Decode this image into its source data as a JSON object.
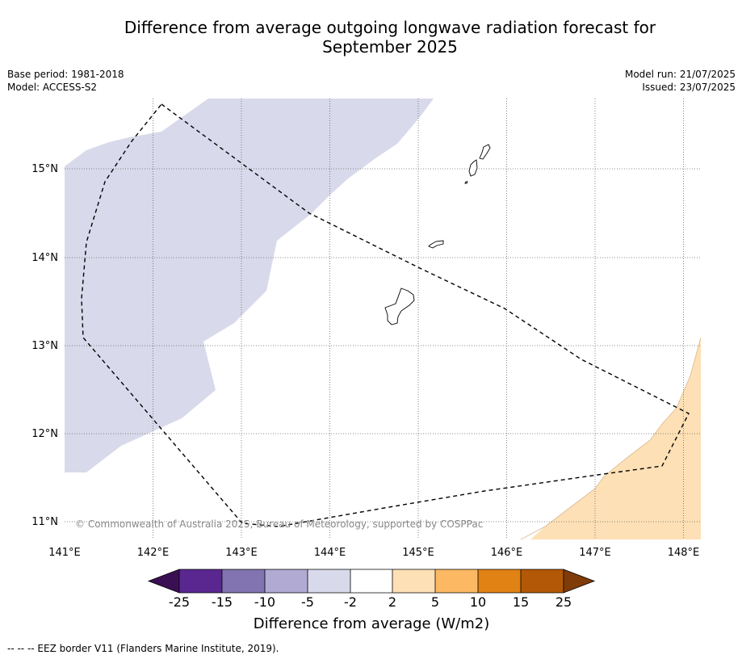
{
  "title_line1": "Difference from average outgoing longwave radiation forecast for",
  "title_line2": "September 2025",
  "info_left": [
    "Base period: 1981-2018",
    "Model: ACCESS-S2"
  ],
  "info_right": [
    "Model run: 21/07/2025",
    "Issued: 23/07/2025"
  ],
  "map": {
    "lon_ticks": [
      "141°E",
      "142°E",
      "143°E",
      "144°E",
      "145°E",
      "146°E",
      "147°E",
      "148°E"
    ],
    "lat_ticks": [
      "15°N",
      "14°N",
      "13°N",
      "12°N",
      "11°N"
    ],
    "lon_range": [
      141.0,
      148.2
    ],
    "lat_range": [
      10.8,
      15.8
    ],
    "anomaly_regions": [
      {
        "range": "-5 to -2",
        "color": "#d8d9ea"
      },
      {
        "range": "2 to 5",
        "color": "#fde0b5"
      }
    ],
    "copyright": "© Commonwealth of Australia 2025, Bureau of Meteorology, supported by COSPPac"
  },
  "colorbar": {
    "label": "Difference from average (W/m2)",
    "ticks": [
      "-25",
      "-15",
      "-10",
      "-5",
      "-2",
      "2",
      "5",
      "10",
      "15",
      "25"
    ],
    "colors": [
      "#3b0f54",
      "#5a2790",
      "#8273b1",
      "#b1aad3",
      "#d8d9ea",
      "#ffffff",
      "#fde0b5",
      "#fdb863",
      "#e08214",
      "#b35806",
      "#7f3b08"
    ]
  },
  "footnote": "--  --  -- EEZ border V11 (Flanders Marine Institute, 2019)."
}
